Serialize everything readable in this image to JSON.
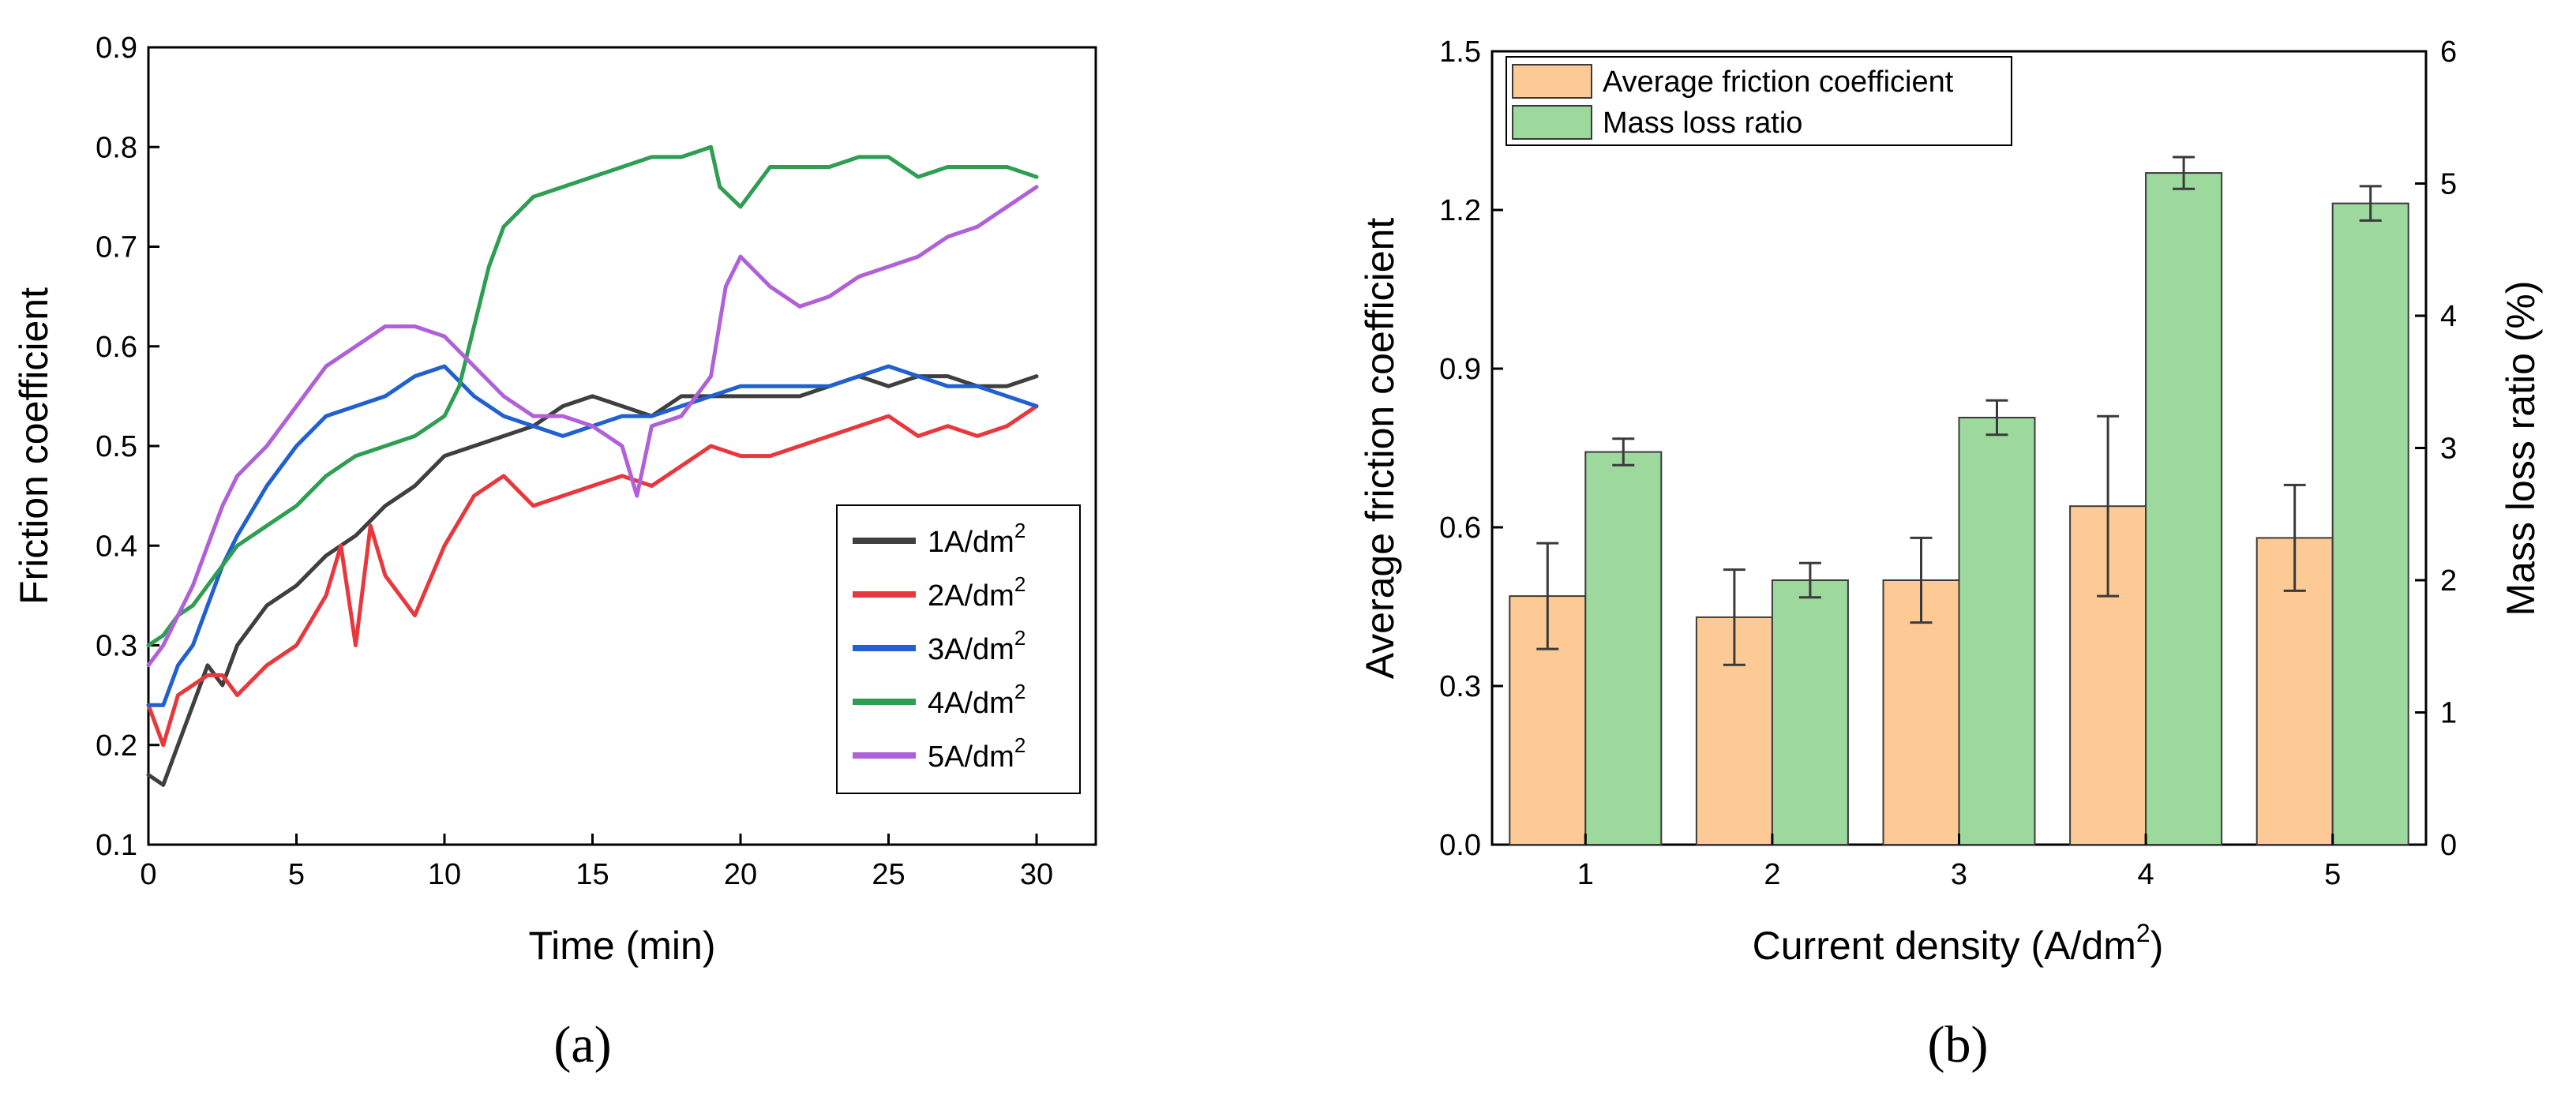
{
  "chart_data": [
    {
      "panel": "a",
      "type": "line",
      "caption": "(a)",
      "xlabel": "Time (min)",
      "ylabel": "Friction coefficient",
      "xlim": [
        0,
        32
      ],
      "ylim": [
        0.1,
        0.9
      ],
      "xticks": [
        "0",
        "5",
        "10",
        "15",
        "20",
        "25",
        "30"
      ],
      "yticks": [
        "0.1",
        "0.2",
        "0.3",
        "0.4",
        "0.5",
        "0.6",
        "0.7",
        "0.8",
        "0.9"
      ],
      "legend_position": "lower-right",
      "series": [
        {
          "name": "1A/dm",
          "sup": "2",
          "color": "#3f3f3f",
          "x": [
            0,
            0.5,
            1,
            1.5,
            2,
            2.5,
            3,
            4,
            5,
            6,
            7,
            8,
            9,
            10,
            11,
            12,
            13,
            14,
            15,
            16,
            17,
            18,
            19,
            20,
            21,
            22,
            23,
            24,
            25,
            26,
            27,
            28,
            29,
            30
          ],
          "y": [
            0.17,
            0.16,
            0.2,
            0.24,
            0.28,
            0.26,
            0.3,
            0.34,
            0.36,
            0.39,
            0.41,
            0.44,
            0.46,
            0.49,
            0.5,
            0.51,
            0.52,
            0.54,
            0.55,
            0.54,
            0.53,
            0.55,
            0.55,
            0.55,
            0.55,
            0.55,
            0.56,
            0.57,
            0.56,
            0.57,
            0.57,
            0.56,
            0.56,
            0.57
          ]
        },
        {
          "name": "2A/dm",
          "sup": "2",
          "color": "#e8383d",
          "x": [
            0,
            0.5,
            1,
            1.5,
            2,
            2.5,
            3,
            4,
            5,
            6,
            6.5,
            7,
            7.5,
            8,
            9,
            10,
            11,
            12,
            13,
            14,
            15,
            16,
            17,
            18,
            19,
            20,
            21,
            22,
            23,
            24,
            25,
            26,
            27,
            28,
            29,
            30
          ],
          "y": [
            0.24,
            0.2,
            0.25,
            0.26,
            0.27,
            0.27,
            0.25,
            0.28,
            0.3,
            0.35,
            0.4,
            0.3,
            0.42,
            0.37,
            0.33,
            0.4,
            0.45,
            0.47,
            0.44,
            0.45,
            0.46,
            0.47,
            0.46,
            0.48,
            0.5,
            0.49,
            0.49,
            0.5,
            0.51,
            0.52,
            0.53,
            0.51,
            0.52,
            0.51,
            0.52,
            0.54
          ]
        },
        {
          "name": "3A/dm",
          "sup": "2",
          "color": "#2060d0",
          "x": [
            0,
            0.5,
            1,
            1.5,
            2,
            2.5,
            3,
            4,
            5,
            6,
            7,
            8,
            9,
            10,
            11,
            12,
            13,
            14,
            15,
            16,
            17,
            18,
            19,
            20,
            21,
            22,
            23,
            24,
            25,
            26,
            27,
            28,
            29,
            30
          ],
          "y": [
            0.24,
            0.24,
            0.28,
            0.3,
            0.34,
            0.38,
            0.41,
            0.46,
            0.5,
            0.53,
            0.54,
            0.55,
            0.57,
            0.58,
            0.55,
            0.53,
            0.52,
            0.51,
            0.52,
            0.53,
            0.53,
            0.54,
            0.55,
            0.56,
            0.56,
            0.56,
            0.56,
            0.57,
            0.58,
            0.57,
            0.56,
            0.56,
            0.55,
            0.54
          ]
        },
        {
          "name": "4A/dm",
          "sup": "2",
          "color": "#2e9e52",
          "x": [
            0,
            0.5,
            1,
            1.5,
            2,
            2.5,
            3,
            4,
            5,
            6,
            7,
            8,
            9,
            10,
            10.5,
            11,
            11.5,
            12,
            13,
            14,
            15,
            16,
            17,
            18,
            19,
            19.3,
            20,
            21,
            22,
            23,
            24,
            25,
            26,
            27,
            28,
            29,
            30
          ],
          "y": [
            0.3,
            0.31,
            0.33,
            0.34,
            0.36,
            0.38,
            0.4,
            0.42,
            0.44,
            0.47,
            0.49,
            0.5,
            0.51,
            0.53,
            0.56,
            0.62,
            0.68,
            0.72,
            0.75,
            0.76,
            0.77,
            0.78,
            0.79,
            0.79,
            0.8,
            0.76,
            0.74,
            0.78,
            0.78,
            0.78,
            0.79,
            0.79,
            0.77,
            0.78,
            0.78,
            0.78,
            0.77
          ]
        },
        {
          "name": "5A/dm",
          "sup": "2",
          "color": "#b060d8",
          "x": [
            0,
            0.5,
            1,
            1.5,
            2,
            2.5,
            3,
            4,
            5,
            6,
            7,
            8,
            9,
            10,
            11,
            12,
            13,
            14,
            15,
            16,
            16.5,
            17,
            18,
            19,
            19.5,
            20,
            21,
            22,
            23,
            24,
            25,
            26,
            27,
            28,
            29,
            30
          ],
          "y": [
            0.28,
            0.3,
            0.33,
            0.36,
            0.4,
            0.44,
            0.47,
            0.5,
            0.54,
            0.58,
            0.6,
            0.62,
            0.62,
            0.61,
            0.58,
            0.55,
            0.53,
            0.53,
            0.52,
            0.5,
            0.45,
            0.52,
            0.53,
            0.57,
            0.66,
            0.69,
            0.66,
            0.64,
            0.65,
            0.67,
            0.68,
            0.69,
            0.71,
            0.72,
            0.74,
            0.76
          ]
        }
      ]
    },
    {
      "panel": "b",
      "type": "bar",
      "caption": "(b)",
      "xlabel": "Current density (A/dm",
      "xlabel_sup": "2",
      "xlabel_end": ")",
      "ylabel_left": "Average friction coefficient",
      "ylabel_right": "Mass loss ratio (%)",
      "categories": [
        "1",
        "2",
        "3",
        "4",
        "5"
      ],
      "ylim_left": [
        0,
        1.5
      ],
      "ylim_right": [
        0,
        6
      ],
      "yticks_left": [
        "0.0",
        "0.3",
        "0.6",
        "0.9",
        "1.2",
        "1.5"
      ],
      "yticks_right": [
        "0",
        "1",
        "2",
        "3",
        "4",
        "5",
        "6"
      ],
      "legend_position": "top-left",
      "series": [
        {
          "name": "Average friction coefficient",
          "axis": "left",
          "color": "#fdc994",
          "values": [
            0.47,
            0.43,
            0.5,
            0.64,
            0.58
          ],
          "errors": [
            0.1,
            0.09,
            0.08,
            0.17,
            0.1
          ]
        },
        {
          "name": "Mass loss ratio",
          "axis": "right",
          "color": "#9dd89d",
          "values": [
            2.97,
            2.0,
            3.23,
            5.08,
            4.85
          ],
          "errors": [
            0.1,
            0.13,
            0.13,
            0.12,
            0.13
          ]
        }
      ]
    }
  ]
}
